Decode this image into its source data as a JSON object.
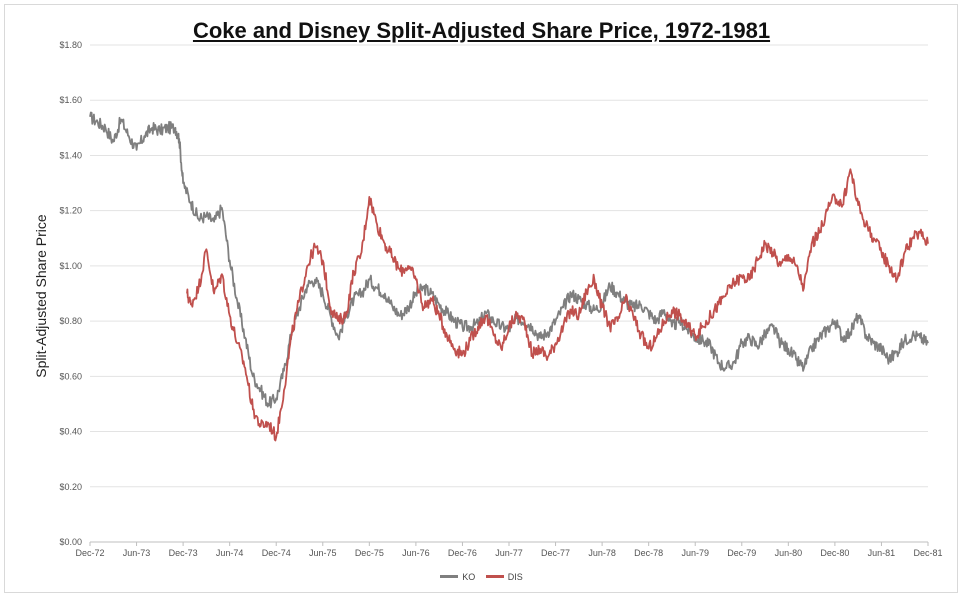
{
  "chart_data": {
    "type": "line",
    "title": "Coke and Disney Split-Adjusted Share Price, 1972-1981",
    "ylabel": "Split-Adjusted Share Price",
    "xlabel": "",
    "ylim": [
      0,
      1.8
    ],
    "y_ticks": [
      "$0.00",
      "$0.20",
      "$0.40",
      "$0.60",
      "$0.80",
      "$1.00",
      "$1.20",
      "$1.40",
      "$1.60",
      "$1.80"
    ],
    "x_tick_labels": [
      "Dec-72",
      "Jun-73",
      "Dec-73",
      "Jun-74",
      "Dec-74",
      "Jun-75",
      "Dec-75",
      "Jun-76",
      "Dec-76",
      "Jun-77",
      "Dec-77",
      "Jun-78",
      "Dec-78",
      "Jun-79",
      "Dec-79",
      "Jun-80",
      "Dec-80",
      "Jun-81",
      "Dec-81"
    ],
    "x_unit": "months since Dec-72",
    "grid": true,
    "legend_position": "bottom-center",
    "series": [
      {
        "name": "KO",
        "color": "#7f7f7f",
        "x": [
          0,
          1,
          2,
          3,
          4,
          5,
          6,
          7,
          8,
          9,
          10,
          11,
          11.5,
          12,
          13,
          14,
          15,
          16,
          17,
          18,
          19,
          20,
          21,
          22,
          23,
          24,
          25,
          26,
          27,
          28,
          29,
          30,
          31,
          32,
          33,
          34,
          35,
          36,
          37,
          38,
          39,
          40,
          41,
          42,
          43,
          44,
          45,
          46,
          47,
          48,
          49,
          50,
          51,
          52,
          53,
          54,
          55,
          56,
          57,
          58,
          59,
          60,
          61,
          62,
          63,
          64,
          65,
          66,
          67,
          68,
          69,
          70,
          71,
          72,
          73,
          74,
          75,
          76,
          77,
          78,
          79,
          80,
          81,
          82,
          83,
          84,
          85,
          86,
          87,
          88,
          89,
          90,
          91,
          92,
          93,
          94,
          95,
          96,
          97,
          98,
          99,
          100,
          101,
          102,
          103,
          104,
          105,
          106,
          107,
          108
        ],
        "values": [
          1.54,
          1.52,
          1.5,
          1.45,
          1.53,
          1.47,
          1.42,
          1.47,
          1.5,
          1.49,
          1.5,
          1.5,
          1.46,
          1.3,
          1.23,
          1.17,
          1.18,
          1.16,
          1.21,
          1.02,
          0.87,
          0.74,
          0.6,
          0.55,
          0.5,
          0.52,
          0.62,
          0.76,
          0.85,
          0.93,
          0.95,
          0.9,
          0.82,
          0.74,
          0.82,
          0.88,
          0.9,
          0.95,
          0.92,
          0.9,
          0.85,
          0.82,
          0.85,
          0.9,
          0.92,
          0.9,
          0.86,
          0.83,
          0.8,
          0.78,
          0.78,
          0.79,
          0.83,
          0.8,
          0.78,
          0.77,
          0.81,
          0.8,
          0.78,
          0.74,
          0.76,
          0.8,
          0.85,
          0.9,
          0.88,
          0.86,
          0.84,
          0.86,
          0.93,
          0.9,
          0.87,
          0.85,
          0.86,
          0.83,
          0.8,
          0.84,
          0.78,
          0.8,
          0.77,
          0.74,
          0.73,
          0.71,
          0.65,
          0.63,
          0.65,
          0.72,
          0.74,
          0.71,
          0.75,
          0.78,
          0.72,
          0.7,
          0.66,
          0.63,
          0.7,
          0.74,
          0.77,
          0.8,
          0.74,
          0.76,
          0.82,
          0.75,
          0.72,
          0.7,
          0.66,
          0.69,
          0.73,
          0.75,
          0.74,
          0.72
        ]
      },
      {
        "name": "DIS",
        "color": "#c0504d",
        "x": [
          12.5,
          13,
          14,
          15,
          16,
          17,
          18,
          19,
          20,
          21,
          22,
          23,
          24,
          25,
          26,
          27,
          28,
          29,
          30,
          31,
          32,
          33,
          34,
          35,
          36,
          37,
          38,
          39,
          40,
          41,
          42,
          43,
          44,
          45,
          46,
          47,
          48,
          49,
          50,
          51,
          52,
          53,
          54,
          55,
          56,
          57,
          58,
          59,
          60,
          61,
          62,
          63,
          64,
          65,
          66,
          67,
          68,
          69,
          70,
          71,
          72,
          73,
          74,
          75,
          76,
          77,
          78,
          79,
          80,
          81,
          82,
          83,
          84,
          85,
          86,
          87,
          88,
          89,
          90,
          91,
          92,
          93,
          94,
          95,
          96,
          97,
          98,
          99,
          100,
          101,
          102,
          103,
          104,
          105,
          106,
          107,
          108
        ],
        "values": [
          0.9,
          0.86,
          0.92,
          1.06,
          0.9,
          0.97,
          0.82,
          0.72,
          0.63,
          0.48,
          0.42,
          0.43,
          0.38,
          0.55,
          0.75,
          0.88,
          1.0,
          1.07,
          1.02,
          0.85,
          0.8,
          0.82,
          0.98,
          1.05,
          1.25,
          1.15,
          1.08,
          1.03,
          0.98,
          1.0,
          0.95,
          0.85,
          0.88,
          0.82,
          0.75,
          0.7,
          0.68,
          0.73,
          0.78,
          0.82,
          0.75,
          0.7,
          0.78,
          0.82,
          0.8,
          0.68,
          0.7,
          0.67,
          0.72,
          0.78,
          0.84,
          0.82,
          0.91,
          0.95,
          0.85,
          0.78,
          0.8,
          0.88,
          0.82,
          0.75,
          0.7,
          0.74,
          0.8,
          0.84,
          0.82,
          0.78,
          0.75,
          0.78,
          0.82,
          0.86,
          0.9,
          0.94,
          0.96,
          0.95,
          1.02,
          1.08,
          1.05,
          1.0,
          1.04,
          1.0,
          0.92,
          1.08,
          1.12,
          1.2,
          1.25,
          1.22,
          1.35,
          1.22,
          1.15,
          1.1,
          1.05,
          1.0,
          0.95,
          1.05,
          1.1,
          1.12,
          1.08
        ]
      }
    ]
  }
}
